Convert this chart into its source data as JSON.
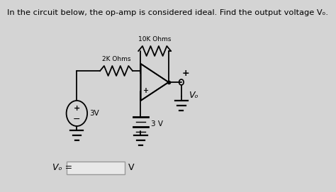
{
  "title": "In the circuit below, the op-amp is considered ideal. Find the output voltage Vₒ.",
  "title_fontsize": 8.5,
  "bg_color": "#d4d4d4",
  "line_color": "#000000",
  "text_color": "#000000",
  "answer_label": "Vₒ =",
  "answer_unit": "V",
  "r1_label": "2K Ohms",
  "r2_label": "10K Ohms",
  "v1_label": "3V",
  "v2_label": "3 V",
  "vo_label": "Vₒ"
}
